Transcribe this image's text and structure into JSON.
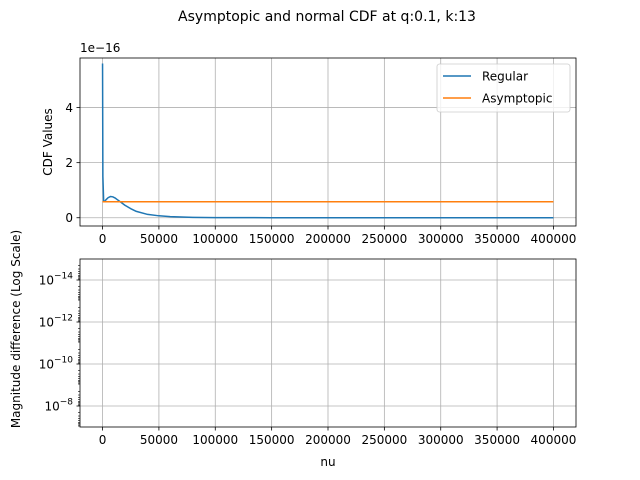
{
  "figure_title": "Asymptopic and normal CDF at q:0.1, k:13",
  "chart_data": [
    {
      "type": "line",
      "ylabel": "CDF Values",
      "offset_text": "1e−16",
      "xlim": [
        -20000,
        420000
      ],
      "ylim": [
        -0.3,
        5.8
      ],
      "x_ticks": [
        0,
        50000,
        100000,
        150000,
        200000,
        250000,
        300000,
        350000,
        400000
      ],
      "x_tick_labels": [
        "0",
        "50000",
        "100000",
        "150000",
        "200000",
        "250000",
        "300000",
        "350000",
        "400000"
      ],
      "y_ticks": [
        0,
        2,
        4
      ],
      "y_tick_labels": [
        "0",
        "2",
        "4"
      ],
      "grid": true,
      "legend_position": "upper-right",
      "legend_labels": [
        "Regular",
        "Asymptopic"
      ],
      "series": [
        {
          "name": "Regular",
          "color": "#1f77b4",
          "x": [
            1,
            300,
            1000,
            2000,
            3000,
            5000,
            7000,
            9000,
            11000,
            13000,
            16000,
            20000,
            25000,
            30000,
            40000,
            50000,
            60000,
            70000,
            80000,
            90000,
            100000,
            120000,
            150000,
            200000,
            250000,
            300000,
            350000,
            400000
          ],
          "y": [
            5.6,
            1.5,
            0.58,
            0.6,
            0.65,
            0.73,
            0.77,
            0.76,
            0.72,
            0.66,
            0.57,
            0.45,
            0.33,
            0.23,
            0.12,
            0.07,
            0.04,
            0.025,
            0.015,
            0.009,
            0.006,
            0.003,
            0.001,
            0.0,
            0.0,
            0.0,
            0.0,
            0.0
          ]
        },
        {
          "name": "Asymptopic",
          "color": "#ff7f0e",
          "x": [
            1,
            400000
          ],
          "y": [
            0.58,
            0.58
          ]
        }
      ]
    },
    {
      "type": "line",
      "xlabel": "nu",
      "ylabel": "Magnitude difference (Log Scale)",
      "xlim": [
        -20000,
        420000
      ],
      "y_scale": "log",
      "y_inverted": true,
      "y_log_range": [
        -7,
        -15
      ],
      "x_ticks": [
        0,
        50000,
        100000,
        150000,
        200000,
        250000,
        300000,
        350000,
        400000
      ],
      "x_tick_labels": [
        "0",
        "50000",
        "100000",
        "150000",
        "200000",
        "250000",
        "300000",
        "350000",
        "400000"
      ],
      "y_ticks": [
        -8,
        -10,
        -12,
        -14
      ],
      "y_tick_labels": [
        "−8",
        "−10",
        "−12",
        "−14"
      ],
      "grid": true,
      "series": []
    }
  ]
}
